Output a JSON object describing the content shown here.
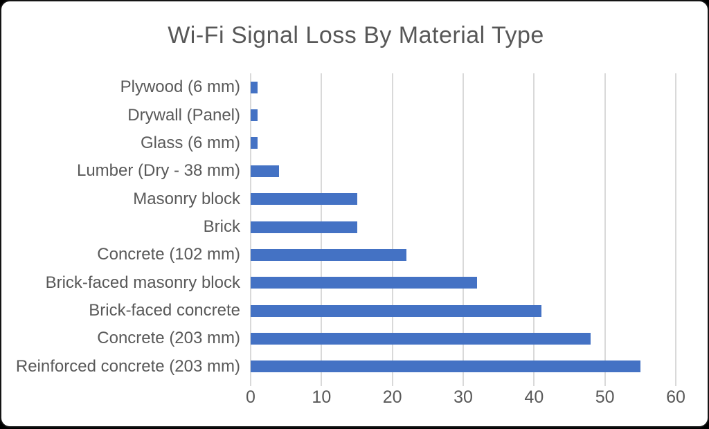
{
  "chart_data": {
    "type": "bar",
    "orientation": "horizontal",
    "title": "Wi-Fi Signal Loss By Material Type",
    "categories": [
      "Plywood (6 mm)",
      "Drywall (Panel)",
      "Glass (6 mm)",
      "Lumber (Dry - 38 mm)",
      "Masonry block",
      "Brick",
      "Concrete (102 mm)",
      "Brick-faced masonry block",
      "Brick-faced concrete",
      "Concrete (203 mm)",
      "Reinforced concrete (203 mm)"
    ],
    "values": [
      1,
      1,
      1,
      4,
      15,
      15,
      22,
      32,
      41,
      48,
      55
    ],
    "xlabel": "",
    "ylabel": "",
    "xlim": [
      0,
      60
    ],
    "xticks": [
      0,
      10,
      20,
      30,
      40,
      50,
      60
    ],
    "grid": "vertical-gridlines",
    "legend": "none",
    "bar_color": "#4472C4",
    "gridline_color": "#D9D9D9",
    "text_color": "#595959",
    "title_color": "#575757"
  }
}
